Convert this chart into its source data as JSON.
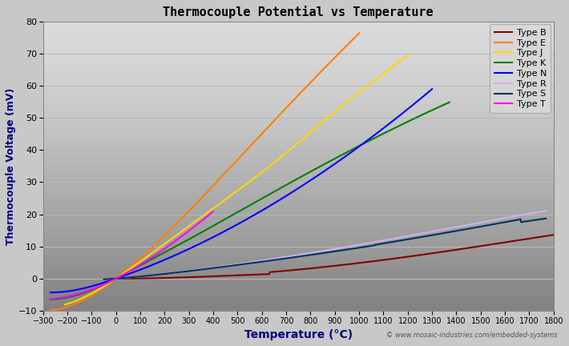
{
  "title": "Thermocouple Potential vs Temperature",
  "xlabel": "Temperature (°C)",
  "ylabel": "Thermocouple Voltage (mV)",
  "xlim": [
    -300,
    1800
  ],
  "ylim": [
    -10,
    80
  ],
  "xticks": [
    -300,
    -200,
    -100,
    0,
    100,
    200,
    300,
    400,
    500,
    600,
    700,
    800,
    900,
    1000,
    1100,
    1200,
    1300,
    1400,
    1500,
    1600,
    1700,
    1800
  ],
  "yticks": [
    -10,
    0,
    10,
    20,
    30,
    40,
    50,
    60,
    70,
    80
  ],
  "fig_bg_color": "#c8c8c8",
  "plot_bg_top": "#e8e8e8",
  "plot_bg_bottom": "#b8b8b8",
  "grid_color": "#d0d0d0",
  "watermark": "© www.mosaic-industries.com/embedded-systems",
  "series": [
    {
      "name": "Type B",
      "color": "#800000"
    },
    {
      "name": "Type E",
      "color": "#ff8000"
    },
    {
      "name": "Type J",
      "color": "#ffd700"
    },
    {
      "name": "Type K",
      "color": "#008000"
    },
    {
      "name": "Type N",
      "color": "#0000ff"
    },
    {
      "name": "Type R",
      "color": "#d0b0f0"
    },
    {
      "name": "Type S",
      "color": "#003060"
    },
    {
      "name": "Type T",
      "color": "#ff00ff"
    }
  ]
}
